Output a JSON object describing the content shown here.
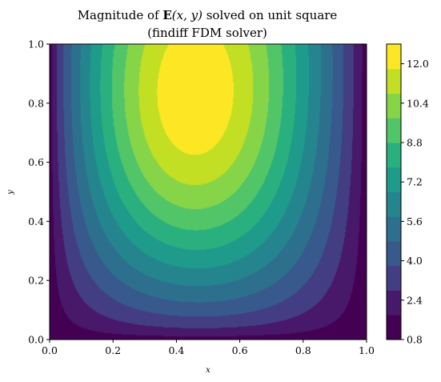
{
  "chart_data": {
    "type": "contourf",
    "title": "Magnitude of E(x, y) solved on unit square",
    "title_parts": {
      "prefix": "Magnitude of ",
      "symbol": "E",
      "args": "(x, y)",
      "suffix": " solved on unit square"
    },
    "subtitle": "(findiff FDM solver)",
    "xlabel": "x",
    "ylabel": "y",
    "xlim": [
      0.0,
      1.0
    ],
    "ylim": [
      0.0,
      1.0
    ],
    "xticks": [
      "0.0",
      "0.2",
      "0.4",
      "0.6",
      "0.8",
      "1.0"
    ],
    "yticks": [
      "0.0",
      "0.2",
      "0.4",
      "0.6",
      "0.8",
      "1.0"
    ],
    "colormap": "viridis",
    "grid": false,
    "colorbar": {
      "position": "right",
      "levels": [
        0.8,
        1.6,
        2.4,
        3.2,
        4.0,
        4.8,
        5.6,
        6.4,
        7.2,
        8.0,
        8.8,
        9.6,
        10.4,
        11.2,
        12.0,
        12.8
      ],
      "tick_labels": [
        "0.8",
        "2.4",
        "4.0",
        "5.6",
        "7.2",
        "8.8",
        "10.4",
        "12.0"
      ],
      "colors": [
        "#440154",
        "#48186a",
        "#433d84",
        "#38598c",
        "#2d708e",
        "#25858e",
        "#1e9b8a",
        "#2ab07f",
        "#52c569",
        "#86d549",
        "#c2df23",
        "#fde725"
      ]
    },
    "field": {
      "max_value": 12.55,
      "peak_location": [
        0.41,
        0.71
      ],
      "description_values": {
        "min": 0.8,
        "max": 12.8
      }
    }
  }
}
